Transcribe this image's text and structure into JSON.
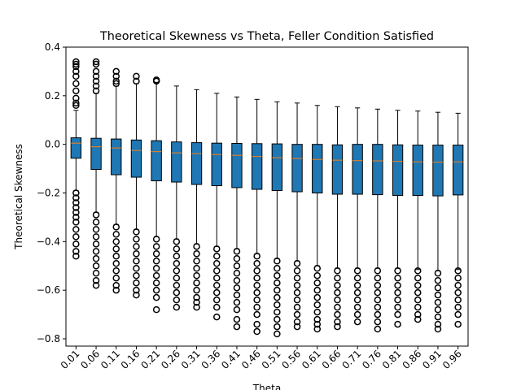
{
  "chart_data": {
    "type": "box",
    "title": "Theoretical Skewness vs Theta, Feller Condition Satisfied",
    "xlabel": "Theta",
    "ylabel": "Theoretical Skewness",
    "box_color": "#1f77b4",
    "median_color": "#ff7f0e",
    "ylim": [
      -0.83,
      0.4
    ],
    "yticks": [
      {
        "value": -0.8,
        "label": "−0.8"
      },
      {
        "value": -0.6,
        "label": "−0.6"
      },
      {
        "value": -0.4,
        "label": "−0.4"
      },
      {
        "value": -0.2,
        "label": "−0.2"
      },
      {
        "value": 0,
        "label": "0.0"
      },
      0.2,
      0.4
    ],
    "categories": [
      "0.01",
      "0.06",
      "0.11",
      "0.16",
      "0.21",
      "0.26",
      "0.31",
      "0.36",
      "0.41",
      "0.46",
      "0.51",
      "0.56",
      "0.61",
      "0.66",
      "0.71",
      "0.76",
      "0.81",
      "0.86",
      "0.91",
      "0.96"
    ],
    "boxes": [
      {
        "whislo": -0.19,
        "q1": -0.057,
        "med": 0.005,
        "q3": 0.027,
        "whishi": 0.14,
        "fliers": [
          0.34,
          0.33,
          0.32,
          0.3,
          0.28,
          0.25,
          0.22,
          0.19,
          0.17,
          0.16,
          -0.2,
          -0.22,
          -0.24,
          -0.26,
          -0.28,
          -0.3,
          -0.32,
          -0.35,
          -0.38,
          -0.41,
          -0.44,
          -0.46
        ]
      },
      {
        "whislo": -0.28,
        "q1": -0.103,
        "med": -0.01,
        "q3": 0.025,
        "whishi": 0.21,
        "fliers": [
          0.34,
          0.33,
          0.3,
          0.28,
          0.26,
          0.24,
          0.22,
          -0.29,
          -0.32,
          -0.35,
          -0.38,
          -0.41,
          -0.44,
          -0.47,
          -0.5,
          -0.53,
          -0.56,
          -0.58
        ]
      },
      {
        "whislo": -0.33,
        "q1": -0.125,
        "med": -0.015,
        "q3": 0.022,
        "whishi": 0.24,
        "fliers": [
          0.3,
          0.28,
          0.26,
          0.25,
          -0.34,
          -0.37,
          -0.4,
          -0.43,
          -0.46,
          -0.49,
          -0.52,
          -0.55,
          -0.58,
          -0.6
        ]
      },
      {
        "whislo": -0.35,
        "q1": -0.135,
        "med": -0.025,
        "q3": 0.018,
        "whishi": 0.25,
        "fliers": [
          0.28,
          0.26,
          -0.36,
          -0.39,
          -0.42,
          -0.45,
          -0.48,
          -0.51,
          -0.54,
          -0.57,
          -0.6,
          -0.62
        ]
      },
      {
        "whislo": -0.38,
        "q1": -0.15,
        "med": -0.03,
        "q3": 0.015,
        "whishi": 0.255,
        "fliers": [
          0.265,
          0.26,
          -0.39,
          -0.42,
          -0.45,
          -0.48,
          -0.51,
          -0.54,
          -0.57,
          -0.6,
          -0.63,
          -0.68
        ]
      },
      {
        "whislo": -0.39,
        "q1": -0.155,
        "med": -0.035,
        "q3": 0.01,
        "whishi": 0.24,
        "fliers": [
          -0.4,
          -0.43,
          -0.46,
          -0.49,
          -0.52,
          -0.55,
          -0.58,
          -0.61,
          -0.64,
          -0.67
        ]
      },
      {
        "whislo": -0.41,
        "q1": -0.165,
        "med": -0.038,
        "q3": 0.007,
        "whishi": 0.225,
        "fliers": [
          -0.42,
          -0.45,
          -0.48,
          -0.51,
          -0.54,
          -0.57,
          -0.6,
          -0.63,
          -0.65,
          -0.67
        ]
      },
      {
        "whislo": -0.42,
        "q1": -0.17,
        "med": -0.042,
        "q3": 0.005,
        "whishi": 0.21,
        "fliers": [
          -0.43,
          -0.46,
          -0.49,
          -0.52,
          -0.55,
          -0.58,
          -0.61,
          -0.64,
          -0.67,
          -0.71
        ]
      },
      {
        "whislo": -0.43,
        "q1": -0.178,
        "med": -0.045,
        "q3": 0.004,
        "whishi": 0.195,
        "fliers": [
          -0.44,
          -0.47,
          -0.5,
          -0.53,
          -0.56,
          -0.59,
          -0.62,
          -0.65,
          -0.68,
          -0.72,
          -0.75
        ]
      },
      {
        "whislo": -0.45,
        "q1": -0.185,
        "med": -0.05,
        "q3": 0.003,
        "whishi": 0.185,
        "fliers": [
          -0.46,
          -0.49,
          -0.52,
          -0.55,
          -0.58,
          -0.61,
          -0.64,
          -0.67,
          -0.7,
          -0.74,
          -0.77
        ]
      },
      {
        "whislo": -0.47,
        "q1": -0.19,
        "med": -0.055,
        "q3": 0.002,
        "whishi": 0.175,
        "fliers": [
          -0.48,
          -0.51,
          -0.54,
          -0.57,
          -0.6,
          -0.63,
          -0.66,
          -0.69,
          -0.72,
          -0.75,
          -0.78
        ]
      },
      {
        "whislo": -0.48,
        "q1": -0.195,
        "med": -0.058,
        "q3": 0.0,
        "whishi": 0.17,
        "fliers": [
          -0.49,
          -0.52,
          -0.55,
          -0.58,
          -0.61,
          -0.64,
          -0.67,
          -0.7,
          -0.73,
          -0.75
        ]
      },
      {
        "whislo": -0.5,
        "q1": -0.2,
        "med": -0.062,
        "q3": 0.0,
        "whishi": 0.16,
        "fliers": [
          -0.51,
          -0.54,
          -0.57,
          -0.6,
          -0.63,
          -0.66,
          -0.69,
          -0.72,
          -0.74,
          -0.76
        ]
      },
      {
        "whislo": -0.51,
        "q1": -0.205,
        "med": -0.065,
        "q3": -0.002,
        "whishi": 0.155,
        "fliers": [
          -0.52,
          -0.55,
          -0.58,
          -0.61,
          -0.64,
          -0.67,
          -0.7,
          -0.73,
          -0.75
        ]
      },
      {
        "whislo": -0.51,
        "q1": -0.205,
        "med": -0.067,
        "q3": 0.0,
        "whishi": 0.15,
        "fliers": [
          -0.52,
          -0.55,
          -0.58,
          -0.61,
          -0.64,
          -0.67,
          -0.7,
          -0.73
        ]
      },
      {
        "whislo": -0.51,
        "q1": -0.207,
        "med": -0.068,
        "q3": 0.0,
        "whishi": 0.145,
        "fliers": [
          -0.52,
          -0.55,
          -0.58,
          -0.61,
          -0.64,
          -0.67,
          -0.7,
          -0.73,
          -0.76
        ]
      },
      {
        "whislo": -0.51,
        "q1": -0.21,
        "med": -0.07,
        "q3": -0.002,
        "whishi": 0.14,
        "fliers": [
          -0.52,
          -0.55,
          -0.58,
          -0.61,
          -0.64,
          -0.67,
          -0.7,
          -0.74
        ]
      },
      {
        "whislo": -0.515,
        "q1": -0.21,
        "med": -0.072,
        "q3": -0.003,
        "whishi": 0.137,
        "fliers": [
          -0.52,
          -0.55,
          -0.58,
          -0.61,
          -0.64,
          -0.67,
          -0.7,
          -0.72
        ]
      },
      {
        "whislo": -0.52,
        "q1": -0.212,
        "med": -0.073,
        "q3": -0.003,
        "whishi": 0.132,
        "fliers": [
          -0.53,
          -0.56,
          -0.59,
          -0.62,
          -0.65,
          -0.68,
          -0.71,
          -0.74,
          -0.76
        ]
      },
      {
        "whislo": -0.515,
        "q1": -0.208,
        "med": -0.072,
        "q3": -0.003,
        "whishi": 0.128,
        "fliers": [
          -0.52,
          -0.55,
          -0.58,
          -0.61,
          -0.64,
          -0.67,
          -0.7,
          -0.74
        ]
      }
    ]
  }
}
